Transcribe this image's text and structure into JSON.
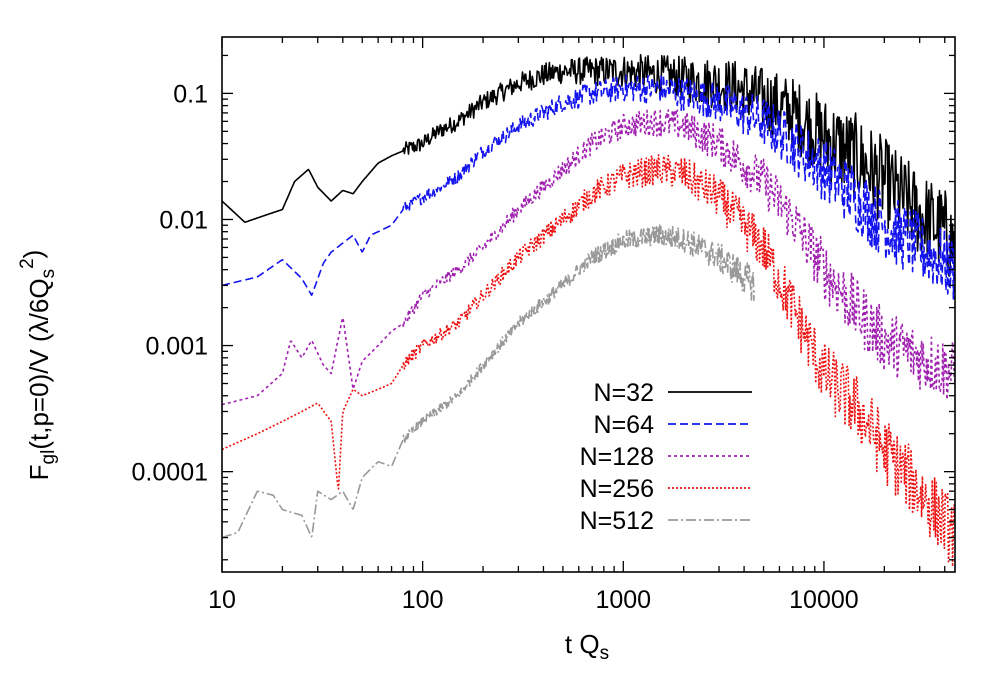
{
  "chart_data": {
    "type": "line",
    "title": "",
    "xlabel": "t Q_s",
    "ylabel": "F_gl(t,p=0)/V (λ/6Q_s^2)",
    "xscale": "log",
    "yscale": "log",
    "xlim": [
      10,
      45000
    ],
    "ylim": [
      1.6e-05,
      0.28
    ],
    "x_ticks": [
      10,
      100,
      1000,
      10000
    ],
    "x_tick_labels": [
      "10",
      "100",
      "1000",
      "10000"
    ],
    "y_ticks": [
      0.0001,
      0.001,
      0.01,
      0.1
    ],
    "y_tick_labels": [
      "0.0001",
      "0.001",
      "0.01",
      "0.1"
    ],
    "legend_position": "bottom-right",
    "series": [
      {
        "name": "N=32",
        "color": "#000000",
        "dash": "solid",
        "x": [
          10,
          13,
          17,
          20,
          23,
          27,
          30,
          35,
          40,
          45,
          50,
          60,
          70,
          80,
          100,
          120,
          150,
          200,
          300,
          400,
          500,
          700,
          1000,
          1500,
          2000,
          3000,
          4000,
          5000,
          7000,
          10000,
          15000,
          20000,
          30000,
          40000,
          45000
        ],
        "y": [
          0.014,
          0.0095,
          0.011,
          0.012,
          0.02,
          0.025,
          0.018,
          0.014,
          0.017,
          0.016,
          0.02,
          0.028,
          0.032,
          0.035,
          0.04,
          0.05,
          0.06,
          0.085,
          0.12,
          0.14,
          0.15,
          0.15,
          0.15,
          0.14,
          0.13,
          0.12,
          0.105,
          0.09,
          0.07,
          0.045,
          0.03,
          0.02,
          0.011,
          0.008,
          0.006
        ],
        "noise": 0.18
      },
      {
        "name": "N=64",
        "color": "#1414ee",
        "dash": "8,4",
        "x": [
          10,
          15,
          20,
          25,
          28,
          32,
          35,
          40,
          45,
          50,
          55,
          60,
          70,
          80,
          100,
          150,
          200,
          300,
          500,
          700,
          1000,
          1500,
          2000,
          3000,
          5000,
          7000,
          10000,
          15000,
          20000,
          30000,
          45000
        ],
        "y": [
          0.003,
          0.0035,
          0.0048,
          0.0034,
          0.0025,
          0.0045,
          0.0055,
          0.0065,
          0.0075,
          0.0055,
          0.0075,
          0.008,
          0.009,
          0.012,
          0.015,
          0.022,
          0.035,
          0.055,
          0.085,
          0.1,
          0.11,
          0.11,
          0.1,
          0.085,
          0.06,
          0.04,
          0.025,
          0.014,
          0.009,
          0.006,
          0.004
        ],
        "noise": 0.14
      },
      {
        "name": "N=128",
        "color": "#a020b0",
        "dash": "3,3",
        "x": [
          10,
          15,
          20,
          22,
          25,
          28,
          32,
          35,
          40,
          45,
          50,
          60,
          70,
          80,
          100,
          150,
          200,
          300,
          500,
          700,
          1000,
          1500,
          2000,
          3000,
          5000,
          7000,
          10000,
          15000,
          20000,
          30000,
          45000
        ],
        "y": [
          0.00034,
          0.0004,
          0.0006,
          0.0011,
          0.0008,
          0.0011,
          0.0007,
          0.0006,
          0.0017,
          0.00045,
          0.00075,
          0.001,
          0.0013,
          0.0015,
          0.0025,
          0.004,
          0.006,
          0.012,
          0.025,
          0.04,
          0.055,
          0.06,
          0.055,
          0.04,
          0.02,
          0.01,
          0.004,
          0.0018,
          0.0011,
          0.0008,
          0.0006
        ],
        "noise": 0.13
      },
      {
        "name": "N=256",
        "color": "#ee1010",
        "dash": "2,2",
        "x": [
          10,
          15,
          20,
          25,
          30,
          35,
          38,
          40,
          45,
          50,
          60,
          70,
          80,
          100,
          150,
          200,
          300,
          500,
          700,
          1000,
          1500,
          2000,
          3000,
          5000,
          7000,
          10000,
          15000,
          20000,
          30000,
          40000,
          45000
        ],
        "y": [
          0.00015,
          0.0002,
          0.00025,
          0.0003,
          0.00035,
          0.00025,
          7e-05,
          0.0003,
          0.00045,
          0.0004,
          0.00045,
          0.0005,
          0.0007,
          0.001,
          0.0015,
          0.0025,
          0.005,
          0.01,
          0.016,
          0.022,
          0.025,
          0.023,
          0.015,
          0.006,
          0.002,
          0.0006,
          0.0003,
          0.00015,
          7e-05,
          4e-05,
          3e-05
        ],
        "noise": 0.14
      },
      {
        "name": "N=512",
        "color": "#999999",
        "dash": "10,3,2,3",
        "x": [
          10,
          12,
          15,
          18,
          20,
          25,
          28,
          30,
          35,
          40,
          45,
          50,
          60,
          70,
          80,
          100,
          150,
          200,
          300,
          500,
          700,
          1000,
          1500,
          2000,
          3000,
          4000,
          4500
        ],
        "y": [
          3e-05,
          3.3e-05,
          7e-05,
          6.5e-05,
          5e-05,
          4.5e-05,
          3e-05,
          7e-05,
          6e-05,
          7e-05,
          5e-05,
          9e-05,
          0.00012,
          0.00011,
          0.00018,
          0.00025,
          0.0004,
          0.0007,
          0.0015,
          0.003,
          0.005,
          0.0068,
          0.0075,
          0.007,
          0.005,
          0.0035,
          0.003
        ],
        "noise": 0.1
      }
    ]
  }
}
